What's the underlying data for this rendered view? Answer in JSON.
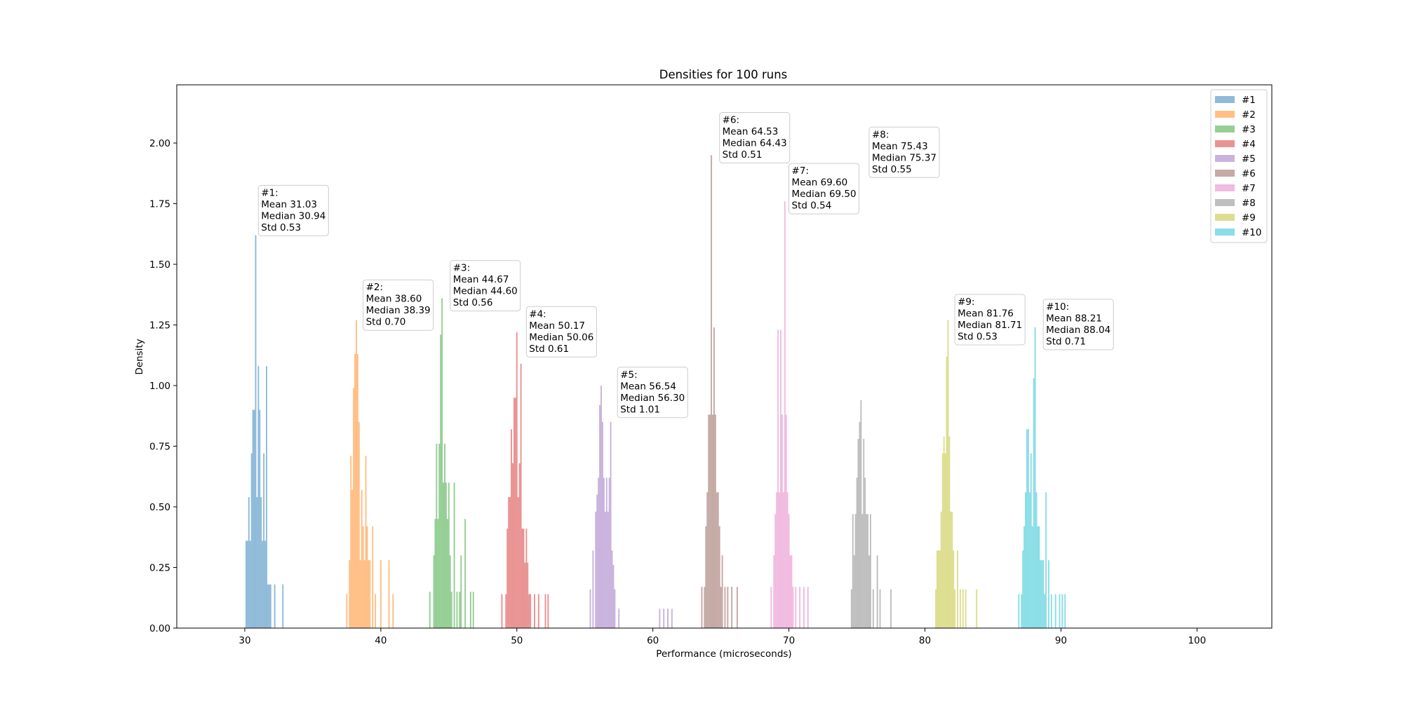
{
  "chart_data": {
    "type": "histogram",
    "title": "Densities for 100 runs",
    "xlabel": "Performance (microseconds)",
    "ylabel": "Density",
    "xlim": [
      25,
      105.5
    ],
    "ylim": [
      0,
      2.24
    ],
    "xticks": [
      30,
      40,
      50,
      60,
      70,
      80,
      90,
      100
    ],
    "yticks": [
      0.0,
      0.25,
      0.5,
      0.75,
      1.0,
      1.25,
      1.5,
      1.75,
      2.0
    ],
    "ytick_labels": [
      "0.00",
      "0.25",
      "0.50",
      "0.75",
      "1.00",
      "1.25",
      "1.50",
      "1.75",
      "2.00"
    ],
    "legend_position": "top-right",
    "grid": false,
    "series": [
      {
        "name": "#1",
        "color": "#1f77b4",
        "annotation": [
          "#1:",
          "Mean 31.03",
          "Median 30.94",
          "Std 0.53"
        ],
        "label_anchor": [
          31.1,
          1.82
        ],
        "bins": [
          [
            30.1,
            0.36
          ],
          [
            30.2,
            0.36
          ],
          [
            30.3,
            0.54
          ],
          [
            30.4,
            0.36
          ],
          [
            30.5,
            0.72
          ],
          [
            30.6,
            0.9
          ],
          [
            30.7,
            0.9
          ],
          [
            30.8,
            1.62
          ],
          [
            30.9,
            0.54
          ],
          [
            31.0,
            1.08
          ],
          [
            31.1,
            0.9
          ],
          [
            31.2,
            0.54
          ],
          [
            31.3,
            0.36
          ],
          [
            31.4,
            0.72
          ],
          [
            31.5,
            0.36
          ],
          [
            31.6,
            1.08
          ],
          [
            31.7,
            0.18
          ],
          [
            31.8,
            0.18
          ],
          [
            31.9,
            0.18
          ],
          [
            32.2,
            0.18
          ],
          [
            32.8,
            0.18
          ]
        ]
      },
      {
        "name": "#2",
        "color": "#ff7f0e",
        "annotation": [
          "#2:",
          "Mean 38.60",
          "Median 38.39",
          "Std 0.70"
        ],
        "label_anchor": [
          38.8,
          1.43
        ],
        "bins": [
          [
            37.5,
            0.14
          ],
          [
            37.7,
            0.28
          ],
          [
            37.8,
            0.71
          ],
          [
            37.9,
            0.57
          ],
          [
            38.0,
            0.99
          ],
          [
            38.1,
            1.13
          ],
          [
            38.2,
            1.27
          ],
          [
            38.3,
            1.13
          ],
          [
            38.4,
            0.85
          ],
          [
            38.5,
            0.28
          ],
          [
            38.6,
            0.57
          ],
          [
            38.7,
            0.42
          ],
          [
            38.8,
            0.28
          ],
          [
            38.9,
            0.71
          ],
          [
            39.0,
            0.42
          ],
          [
            39.1,
            0.28
          ],
          [
            39.2,
            0.28
          ],
          [
            39.4,
            0.42
          ],
          [
            39.6,
            0.14
          ],
          [
            40.0,
            0.28
          ],
          [
            40.6,
            0.28
          ],
          [
            40.9,
            0.14
          ]
        ]
      },
      {
        "name": "#3",
        "color": "#2ca02c",
        "annotation": [
          "#3:",
          "Mean 44.67",
          "Median 44.60",
          "Std 0.56"
        ],
        "label_anchor": [
          45.2,
          1.51
        ],
        "bins": [
          [
            43.6,
            0.15
          ],
          [
            43.9,
            0.3
          ],
          [
            44.0,
            0.45
          ],
          [
            44.1,
            0.76
          ],
          [
            44.2,
            0.45
          ],
          [
            44.3,
            0.76
          ],
          [
            44.4,
            1.21
          ],
          [
            44.5,
            1.36
          ],
          [
            44.6,
            0.6
          ],
          [
            44.7,
            0.76
          ],
          [
            44.8,
            0.6
          ],
          [
            44.9,
            0.45
          ],
          [
            45.0,
            0.6
          ],
          [
            45.1,
            0.3
          ],
          [
            45.2,
            0.15
          ],
          [
            45.4,
            0.6
          ],
          [
            45.6,
            0.15
          ],
          [
            45.8,
            0.15
          ],
          [
            45.9,
            0.3
          ],
          [
            46.2,
            0.45
          ],
          [
            46.6,
            0.15
          ],
          [
            46.8,
            0.15
          ]
        ]
      },
      {
        "name": "#4",
        "color": "#d62728",
        "annotation": [
          "#4:",
          "Mean 50.17",
          "Median 50.06",
          "Std 0.61"
        ],
        "label_anchor": [
          50.8,
          1.32
        ],
        "bins": [
          [
            48.9,
            0.14
          ],
          [
            49.2,
            0.14
          ],
          [
            49.3,
            0.41
          ],
          [
            49.4,
            0.54
          ],
          [
            49.5,
            0.54
          ],
          [
            49.6,
            0.82
          ],
          [
            49.7,
            0.68
          ],
          [
            49.8,
            0.95
          ],
          [
            49.9,
            0.95
          ],
          [
            50.0,
            1.22
          ],
          [
            50.1,
            0.54
          ],
          [
            50.2,
            0.68
          ],
          [
            50.3,
            1.09
          ],
          [
            50.4,
            0.41
          ],
          [
            50.5,
            0.41
          ],
          [
            50.6,
            0.27
          ],
          [
            50.7,
            0.41
          ],
          [
            50.8,
            0.27
          ],
          [
            50.9,
            0.14
          ],
          [
            51.0,
            0.14
          ],
          [
            51.3,
            0.14
          ],
          [
            51.6,
            0.14
          ],
          [
            52.1,
            0.14
          ],
          [
            52.3,
            0.14
          ]
        ]
      },
      {
        "name": "#5",
        "color": "#9467bd",
        "annotation": [
          "#5:",
          "Mean 56.54",
          "Median 56.30",
          "Std 1.01"
        ],
        "label_anchor": [
          57.5,
          1.07
        ],
        "bins": [
          [
            55.4,
            0.16
          ],
          [
            55.6,
            0.32
          ],
          [
            55.8,
            0.48
          ],
          [
            55.9,
            0.55
          ],
          [
            56.0,
            0.62
          ],
          [
            56.1,
            0.92
          ],
          [
            56.2,
            1.0
          ],
          [
            56.3,
            0.85
          ],
          [
            56.4,
            0.62
          ],
          [
            56.5,
            0.48
          ],
          [
            56.6,
            0.62
          ],
          [
            56.7,
            0.48
          ],
          [
            56.8,
            0.62
          ],
          [
            56.9,
            0.85
          ],
          [
            57.0,
            0.32
          ],
          [
            57.1,
            0.26
          ],
          [
            57.2,
            0.16
          ],
          [
            57.5,
            0.08
          ],
          [
            60.5,
            0.08
          ],
          [
            60.8,
            0.08
          ],
          [
            61.1,
            0.08
          ],
          [
            61.4,
            0.08
          ]
        ]
      },
      {
        "name": "#6",
        "color": "#8c564b",
        "annotation": [
          "#6:",
          "Mean 64.53",
          "Median 64.43",
          "Std 0.51"
        ],
        "label_anchor": [
          65.0,
          2.12
        ],
        "bins": [
          [
            63.6,
            0.17
          ],
          [
            63.8,
            0.17
          ],
          [
            63.9,
            0.42
          ],
          [
            64.0,
            0.56
          ],
          [
            64.1,
            0.88
          ],
          [
            64.2,
            0.88
          ],
          [
            64.3,
            1.95
          ],
          [
            64.4,
            0.88
          ],
          [
            64.5,
            1.24
          ],
          [
            64.6,
            0.88
          ],
          [
            64.7,
            0.56
          ],
          [
            64.8,
            0.56
          ],
          [
            64.9,
            0.42
          ],
          [
            65.0,
            0.17
          ],
          [
            65.1,
            0.3
          ],
          [
            65.3,
            0.17
          ],
          [
            65.5,
            0.17
          ],
          [
            65.8,
            0.17
          ],
          [
            66.2,
            0.17
          ]
        ]
      },
      {
        "name": "#7",
        "color": "#e377c2",
        "annotation": [
          "#7:",
          "Mean 69.60",
          "Median 69.50",
          "Std 0.54"
        ],
        "label_anchor": [
          70.1,
          1.91
        ],
        "bins": [
          [
            68.7,
            0.17
          ],
          [
            68.9,
            0.3
          ],
          [
            69.0,
            0.47
          ],
          [
            69.1,
            0.56
          ],
          [
            69.2,
            1.23
          ],
          [
            69.3,
            0.56
          ],
          [
            69.4,
            1.23
          ],
          [
            69.5,
            0.88
          ],
          [
            69.6,
            0.56
          ],
          [
            69.7,
            1.76
          ],
          [
            69.8,
            0.88
          ],
          [
            69.9,
            0.56
          ],
          [
            70.0,
            0.47
          ],
          [
            70.1,
            0.3
          ],
          [
            70.2,
            0.3
          ],
          [
            70.3,
            0.17
          ],
          [
            70.5,
            0.17
          ],
          [
            70.8,
            0.17
          ],
          [
            71.1,
            0.17
          ],
          [
            71.4,
            0.17
          ]
        ]
      },
      {
        "name": "#8",
        "color": "#7f7f7f",
        "annotation": [
          "#8:",
          "Mean 75.43",
          "Median 75.37",
          "Std 0.55"
        ],
        "label_anchor": [
          76.0,
          2.06
        ],
        "bins": [
          [
            74.6,
            0.16
          ],
          [
            74.7,
            0.47
          ],
          [
            74.8,
            0.3
          ],
          [
            74.9,
            0.47
          ],
          [
            75.0,
            0.62
          ],
          [
            75.1,
            0.78
          ],
          [
            75.2,
            0.85
          ],
          [
            75.3,
            0.94
          ],
          [
            75.4,
            0.47
          ],
          [
            75.5,
            0.78
          ],
          [
            75.6,
            0.62
          ],
          [
            75.7,
            0.47
          ],
          [
            75.8,
            0.47
          ],
          [
            75.9,
            0.3
          ],
          [
            76.0,
            0.47
          ],
          [
            76.2,
            0.16
          ],
          [
            76.5,
            0.3
          ],
          [
            76.7,
            0.16
          ],
          [
            77.5,
            0.16
          ]
        ]
      },
      {
        "name": "#9",
        "color": "#bcbd22",
        "annotation": [
          "#9:",
          "Mean 81.76",
          "Median 81.71",
          "Std 0.53"
        ],
        "label_anchor": [
          82.3,
          1.37
        ],
        "bins": [
          [
            80.8,
            0.16
          ],
          [
            80.9,
            0.32
          ],
          [
            81.0,
            0.32
          ],
          [
            81.1,
            0.32
          ],
          [
            81.2,
            0.48
          ],
          [
            81.3,
            0.72
          ],
          [
            81.4,
            0.79
          ],
          [
            81.5,
            0.72
          ],
          [
            81.6,
            1.12
          ],
          [
            81.7,
            1.27
          ],
          [
            81.8,
            0.79
          ],
          [
            81.9,
            0.48
          ],
          [
            82.0,
            0.48
          ],
          [
            82.1,
            0.32
          ],
          [
            82.2,
            0.16
          ],
          [
            82.4,
            0.32
          ],
          [
            82.6,
            0.16
          ],
          [
            82.8,
            0.16
          ],
          [
            83.0,
            0.16
          ],
          [
            83.8,
            0.16
          ]
        ]
      },
      {
        "name": "#10",
        "color": "#17becf",
        "annotation": [
          "#10:",
          "Mean 88.21",
          "Median 88.04",
          "Std 0.71"
        ],
        "label_anchor": [
          88.8,
          1.35
        ],
        "bins": [
          [
            86.9,
            0.14
          ],
          [
            87.1,
            0.14
          ],
          [
            87.2,
            0.32
          ],
          [
            87.3,
            0.42
          ],
          [
            87.4,
            0.56
          ],
          [
            87.5,
            0.82
          ],
          [
            87.6,
            0.82
          ],
          [
            87.7,
            0.56
          ],
          [
            87.8,
            0.72
          ],
          [
            87.9,
            0.42
          ],
          [
            88.0,
            1.03
          ],
          [
            88.1,
            1.24
          ],
          [
            88.2,
            0.56
          ],
          [
            88.3,
            0.42
          ],
          [
            88.4,
            0.42
          ],
          [
            88.5,
            0.28
          ],
          [
            88.6,
            0.28
          ],
          [
            88.7,
            0.28
          ],
          [
            88.8,
            0.14
          ],
          [
            88.9,
            0.56
          ],
          [
            89.1,
            0.28
          ],
          [
            89.3,
            0.14
          ],
          [
            89.6,
            0.14
          ],
          [
            89.9,
            0.14
          ],
          [
            90.1,
            0.14
          ],
          [
            90.3,
            0.14
          ]
        ]
      }
    ]
  }
}
